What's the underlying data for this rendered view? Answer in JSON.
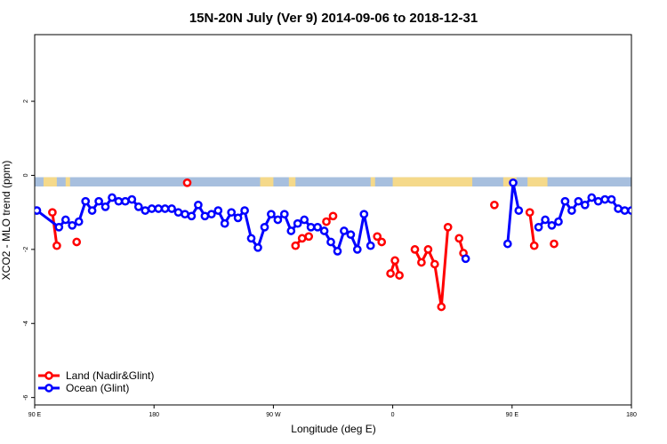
{
  "chart_data": {
    "type": "line",
    "title": "15N-20N July (Ver 9)   2014-09-06 to 2018-12-31",
    "xlabel": "Longitude (deg E)",
    "ylabel": "XCO2 - MLO trend (ppm)",
    "xlim": [
      90,
      360
    ],
    "ylim": [
      -6.2,
      3.8
    ],
    "x_ticks": [
      {
        "value": 90,
        "label": "90 E"
      },
      {
        "value": 144,
        "label": "180"
      },
      {
        "value": 198,
        "label": "90 W"
      },
      {
        "value": 252,
        "label": "0"
      },
      {
        "value": 306,
        "label": "90 E"
      },
      {
        "value": 360,
        "label": "180"
      }
    ],
    "y_ticks": [
      {
        "value": 2,
        "label": "2"
      },
      {
        "value": 0,
        "label": "0"
      },
      {
        "value": -2,
        "label": "-2"
      },
      {
        "value": -4,
        "label": "-4"
      },
      {
        "value": -6,
        "label": "-6"
      }
    ],
    "legend_position": "bottom-left",
    "map_band": {
      "y_top": -0.05,
      "y_bottom": -0.3,
      "ocean_color": "#a7bfde",
      "land_color": "#f5d98a"
    },
    "series": [
      {
        "name": "Land (Nadir&Glint)",
        "color": "#ff0000",
        "segments": [
          [
            [
              98.0,
              -1.0
            ],
            [
              100.0,
              -1.9
            ]
          ],
          [
            [
              109.0,
              -1.8
            ]
          ],
          [
            [
              159.0,
              -0.2
            ]
          ],
          [
            [
              208.0,
              -1.9
            ],
            [
              211.0,
              -1.7
            ],
            [
              214.0,
              -1.65
            ]
          ],
          [
            [
              222.0,
              -1.25
            ],
            [
              225.0,
              -1.1
            ]
          ],
          [
            [
              245.0,
              -1.65
            ],
            [
              247.0,
              -1.8
            ]
          ],
          [
            [
              251.0,
              -2.65
            ],
            [
              253.0,
              -2.3
            ],
            [
              255.0,
              -2.7
            ]
          ],
          [
            [
              262.0,
              -2.0
            ],
            [
              265.0,
              -2.35
            ],
            [
              268.0,
              -2.0
            ],
            [
              271.0,
              -2.4
            ],
            [
              274.0,
              -3.55
            ],
            [
              277.0,
              -1.4
            ]
          ],
          [
            [
              282.0,
              -1.7
            ],
            [
              284.0,
              -2.1
            ]
          ],
          [
            [
              298.0,
              -0.8
            ]
          ],
          [
            [
              314.0,
              -1.0
            ],
            [
              316.0,
              -1.9
            ]
          ],
          [
            [
              325.0,
              -1.85
            ]
          ]
        ]
      },
      {
        "name": "Ocean (Glint)",
        "color": "#0000ff",
        "segments": [
          [
            [
              91.0,
              -0.95
            ],
            [
              101.0,
              -1.4
            ],
            [
              104.0,
              -1.2
            ],
            [
              107.0,
              -1.35
            ],
            [
              110.0,
              -1.25
            ],
            [
              113.0,
              -0.7
            ],
            [
              116.0,
              -0.95
            ],
            [
              119.0,
              -0.7
            ],
            [
              122.0,
              -0.85
            ],
            [
              125.0,
              -0.6
            ],
            [
              128.0,
              -0.7
            ],
            [
              131.0,
              -0.7
            ],
            [
              134.0,
              -0.65
            ],
            [
              137.0,
              -0.85
            ],
            [
              140.0,
              -0.95
            ],
            [
              143.0,
              -0.9
            ],
            [
              146.0,
              -0.9
            ],
            [
              149.0,
              -0.9
            ],
            [
              152.0,
              -0.9
            ],
            [
              155.0,
              -1.0
            ],
            [
              158.0,
              -1.05
            ],
            [
              161.0,
              -1.1
            ],
            [
              164.0,
              -0.8
            ],
            [
              167.0,
              -1.1
            ],
            [
              170.0,
              -1.05
            ],
            [
              173.0,
              -0.95
            ],
            [
              176.0,
              -1.3
            ],
            [
              179.0,
              -1.0
            ],
            [
              182.0,
              -1.15
            ],
            [
              185.0,
              -0.95
            ],
            [
              188.0,
              -1.7
            ],
            [
              191.0,
              -1.95
            ],
            [
              194.0,
              -1.4
            ],
            [
              197.0,
              -1.05
            ],
            [
              200.0,
              -1.2
            ],
            [
              203.0,
              -1.05
            ],
            [
              206.0,
              -1.5
            ],
            [
              209.0,
              -1.3
            ],
            [
              212.0,
              -1.2
            ],
            [
              215.0,
              -1.4
            ],
            [
              218.0,
              -1.4
            ],
            [
              221.0,
              -1.5
            ],
            [
              224.0,
              -1.8
            ],
            [
              227.0,
              -2.05
            ],
            [
              230.0,
              -1.5
            ],
            [
              233.0,
              -1.6
            ],
            [
              236.0,
              -2.0
            ],
            [
              239.0,
              -1.05
            ],
            [
              242.0,
              -1.9
            ]
          ],
          [
            [
              285.0,
              -2.25
            ]
          ],
          [
            [
              304.0,
              -1.85
            ],
            [
              306.5,
              -0.2
            ],
            [
              309.0,
              -0.95
            ]
          ],
          [
            [
              318.0,
              -1.4
            ],
            [
              321.0,
              -1.2
            ],
            [
              324.0,
              -1.35
            ],
            [
              327.0,
              -1.25
            ],
            [
              330.0,
              -0.7
            ],
            [
              333.0,
              -0.95
            ],
            [
              336.0,
              -0.7
            ],
            [
              339.0,
              -0.8
            ],
            [
              342.0,
              -0.6
            ],
            [
              345.0,
              -0.7
            ],
            [
              348.0,
              -0.65
            ],
            [
              351.0,
              -0.65
            ],
            [
              354.0,
              -0.9
            ],
            [
              357.0,
              -0.95
            ],
            [
              360.0,
              -0.95
            ]
          ]
        ]
      }
    ]
  }
}
